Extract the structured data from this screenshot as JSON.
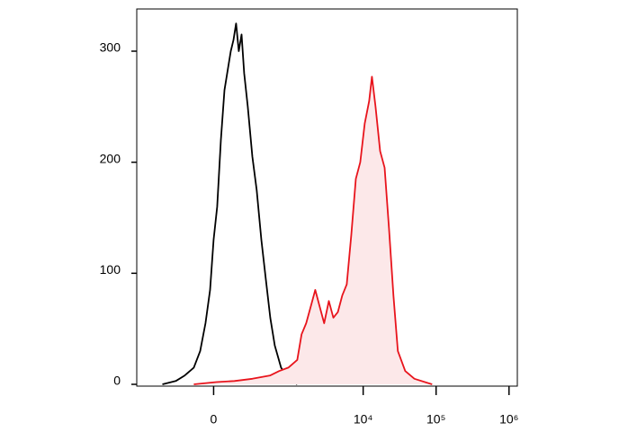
{
  "chart_data": {
    "type": "histogram-overlay",
    "xscale": "biexponential",
    "xlim": [
      -1000,
      1300000
    ],
    "xticks": [
      0,
      {
        "value": 10000,
        "label": "10⁴"
      },
      {
        "value": 100000,
        "label": "10⁵"
      },
      {
        "value": 1000000,
        "label": "10⁶"
      }
    ],
    "ylim": [
      0,
      338
    ],
    "yticks": [
      0,
      100,
      200,
      300
    ],
    "series": [
      {
        "color": "#000000",
        "fill": "none",
        "x": [
          -431,
          -267,
          -185,
          -119,
          -78,
          -46,
          -20,
          0,
          20,
          41,
          62,
          84,
          101,
          119,
          137,
          157,
          178,
          200,
          231,
          276,
          324,
          382,
          445,
          518,
          600,
          739,
          934,
          1241
        ],
        "values": [
          0,
          3,
          8,
          15,
          30,
          55,
          85,
          130,
          160,
          220,
          265,
          285,
          300,
          310,
          325,
          300,
          315,
          280,
          250,
          205,
          175,
          130,
          95,
          60,
          35,
          15,
          5,
          0
        ]
      },
      {
        "color": "#e8141c",
        "fill": "#fce8e9",
        "x": [
          -119,
          15,
          125,
          276,
          518,
          695,
          934,
          1241,
          1427,
          1650,
          1905,
          2200,
          2530,
          2920,
          3380,
          3900,
          4490,
          5170,
          5950,
          6890,
          7940,
          9130,
          10500,
          12070,
          13200,
          14770,
          17090,
          19700,
          22600,
          26000,
          29900,
          37700,
          50400,
          88300
        ],
        "values": [
          0,
          2,
          3,
          5,
          8,
          12,
          15,
          22,
          45,
          55,
          70,
          85,
          70,
          55,
          75,
          60,
          65,
          80,
          90,
          135,
          185,
          200,
          235,
          255,
          277,
          250,
          210,
          195,
          140,
          80,
          30,
          12,
          5,
          0
        ]
      }
    ]
  }
}
